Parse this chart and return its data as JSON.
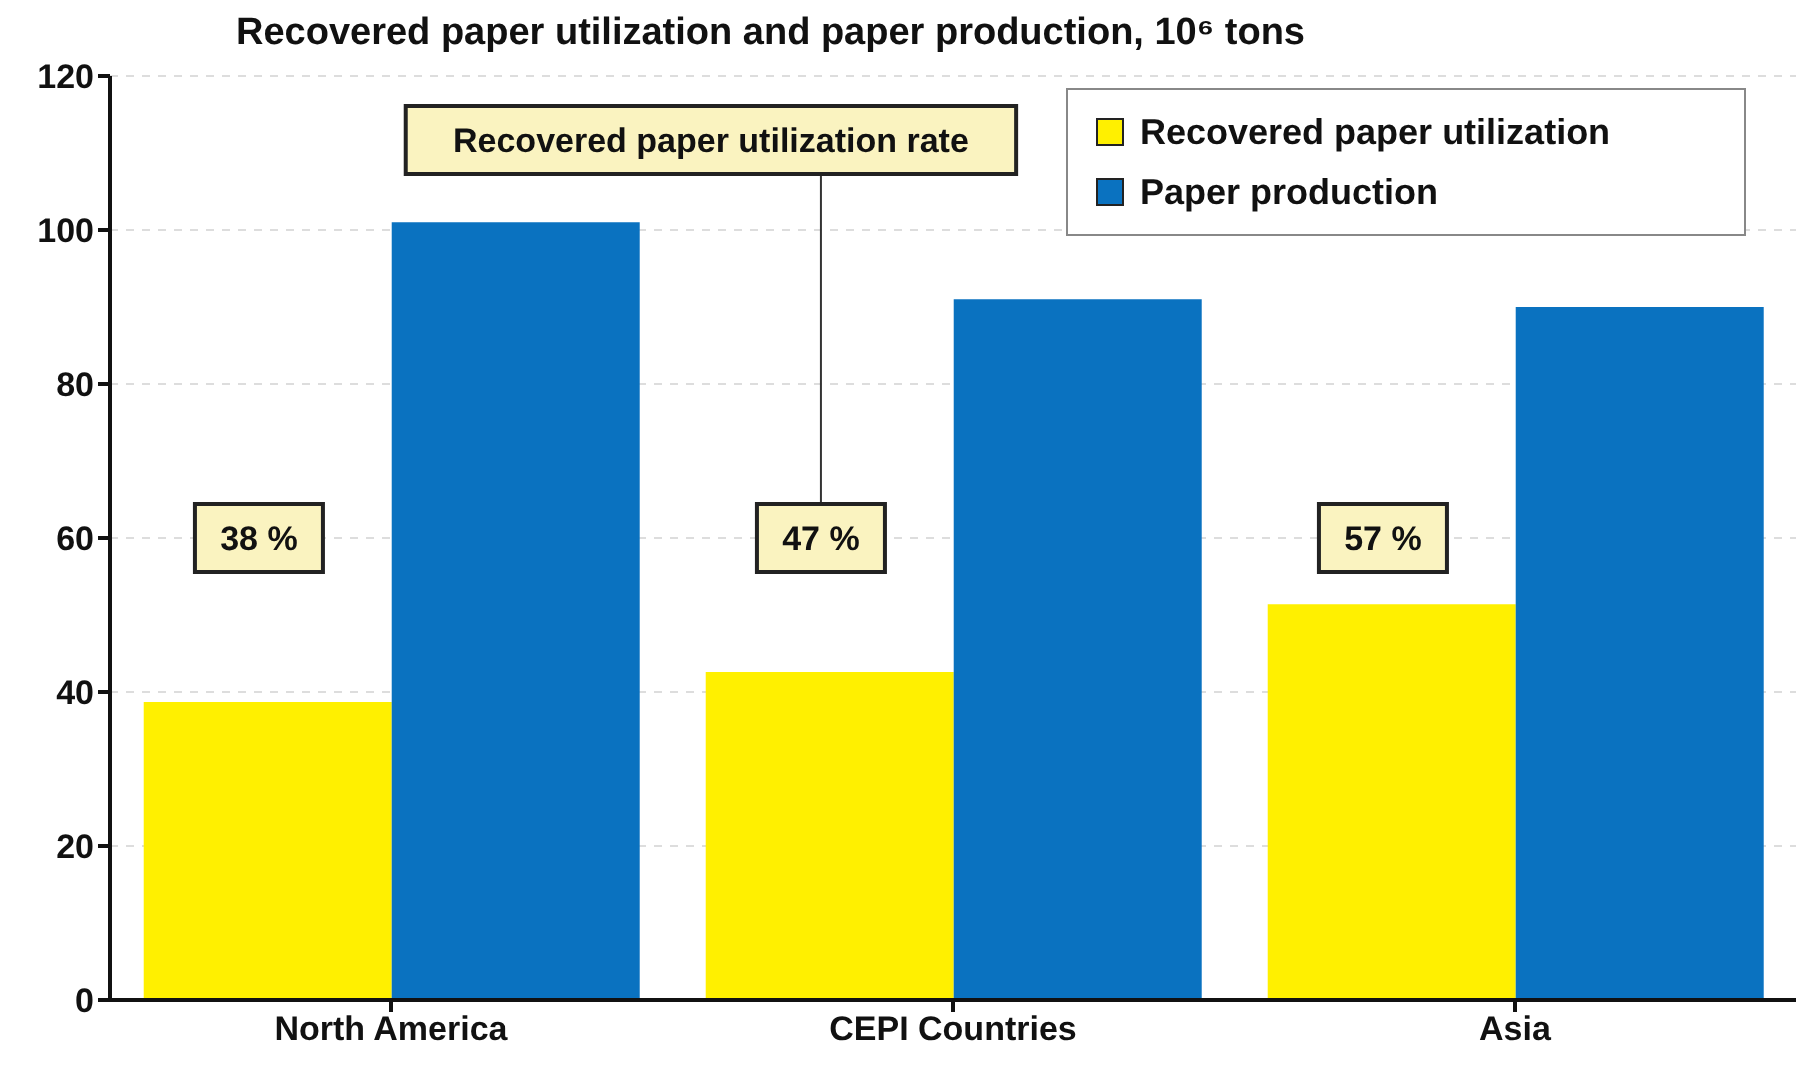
{
  "chart_data": {
    "type": "bar",
    "title": "Recovered paper utilization and paper production, 10⁶ tons",
    "categories": [
      "North America",
      "CEPI Countries",
      "Asia"
    ],
    "series": [
      {
        "name": "Recovered paper utilization",
        "color": "#fff000",
        "values": [
          38.7,
          42.6,
          51.4
        ]
      },
      {
        "name": "Paper production",
        "color": "#0a72c0",
        "values": [
          101,
          91,
          90
        ]
      }
    ],
    "ylim": [
      0,
      120
    ],
    "yticks": [
      0,
      20,
      40,
      60,
      80,
      100,
      120
    ],
    "grid": "y",
    "legend": "top right",
    "annotations": [
      "Recovered paper utilization rate",
      {
        "text": "38 %",
        "x": "North America",
        "y": 60
      },
      {
        "text": "47 %",
        "x": "CEPI Countries",
        "y": 60
      },
      {
        "text": "57 %",
        "x": "Asia",
        "y": 60
      }
    ]
  }
}
